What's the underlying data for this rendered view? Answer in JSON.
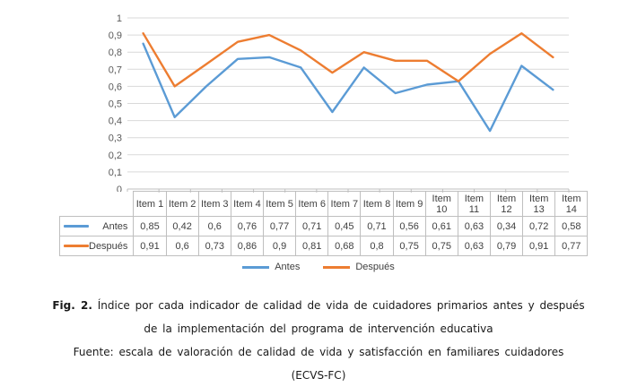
{
  "chart_data": {
    "type": "line",
    "categories": [
      "Item 1",
      "Item 2",
      "Item 3",
      "Item 4",
      "Item 5",
      "Item 6",
      "Item 7",
      "Item 8",
      "Item 9",
      "Item 10",
      "Item 11",
      "Item 12",
      "Item 13",
      "Item 14"
    ],
    "series": [
      {
        "name": "Antes",
        "color": "#5B9BD5",
        "values": [
          0.85,
          0.42,
          0.6,
          0.76,
          0.77,
          0.71,
          0.45,
          0.71,
          0.56,
          0.61,
          0.63,
          0.34,
          0.72,
          0.58
        ]
      },
      {
        "name": "Después",
        "color": "#ED7D31",
        "values": [
          0.91,
          0.6,
          0.73,
          0.86,
          0.9,
          0.81,
          0.68,
          0.8,
          0.75,
          0.75,
          0.63,
          0.79,
          0.91,
          0.77
        ]
      }
    ],
    "title": "",
    "xlabel": "",
    "ylabel": "",
    "ylim": [
      0,
      1
    ],
    "y_ticks": [
      "0",
      "0,1",
      "0,2",
      "0,3",
      "0,4",
      "0,5",
      "0,6",
      "0,7",
      "0,8",
      "0,9",
      "1"
    ],
    "grid": true,
    "legend_position": "bottom"
  },
  "table": {
    "corner": "",
    "rows": [
      {
        "label": "Antes",
        "color": "#5B9BD5",
        "values": [
          "0,85",
          "0,42",
          "0,6",
          "0,76",
          "0,77",
          "0,71",
          "0,45",
          "0,71",
          "0,56",
          "0,61",
          "0,63",
          "0,34",
          "0,72",
          "0,58"
        ]
      },
      {
        "label": "Después",
        "color": "#ED7D31",
        "values": [
          "0,91",
          "0,6",
          "0,73",
          "0,86",
          "0,9",
          "0,81",
          "0,68",
          "0,8",
          "0,75",
          "0,75",
          "0,63",
          "0,79",
          "0,91",
          "0,77"
        ]
      }
    ]
  },
  "legend": [
    {
      "label": "Antes",
      "color": "#5B9BD5"
    },
    {
      "label": "Después",
      "color": "#ED7D31"
    }
  ],
  "caption": {
    "fig_label": "Fig. 2.",
    "line1": " Índice por cada indicador de calidad de vida de cuidadores primarios antes y después",
    "line2": "de la implementación del programa de intervención educativa",
    "line3": "Fuente: escala de valoración de calidad de vida y satisfacción en familiares cuidadores",
    "line4": "(ECVS-FC)"
  },
  "colors": {
    "grid": "#D9D9D9",
    "axis": "#BFBFBF",
    "axis_text": "#595959",
    "table_border": "#BFBFBF",
    "table_text": "#404040"
  }
}
